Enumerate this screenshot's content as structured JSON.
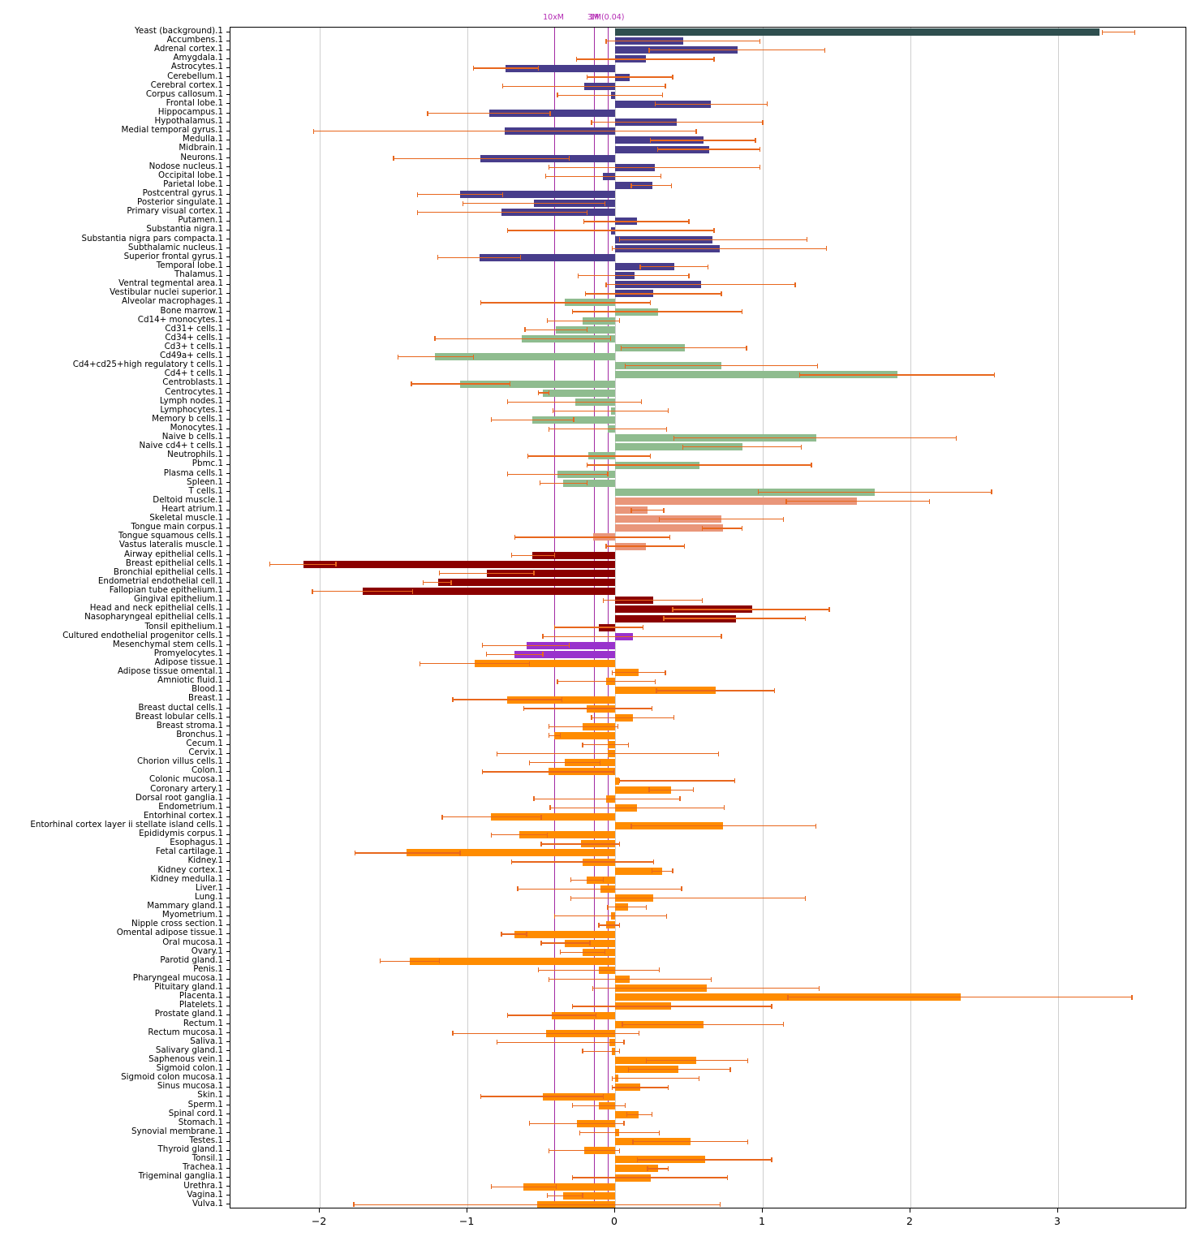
{
  "chart_data": {
    "type": "bar",
    "orientation": "horizontal",
    "title": "",
    "xlabel": "",
    "ylabel": "",
    "grid": true,
    "legend": "none",
    "xlim": [
      -2.605,
      3.874
    ],
    "x_ticks": [
      "-2",
      "-1",
      "0",
      "1",
      "2",
      "3"
    ],
    "x_tick_values": [
      -2,
      -1,
      0,
      1,
      2,
      3
    ],
    "error_bar_color": "#e8671d",
    "annotation_color": "#b32ab3",
    "annotations": [
      {
        "label": "10xM",
        "x": -0.412
      },
      {
        "label": "3M",
        "x": -0.143
      },
      {
        "label": "1M(0.04)",
        "x": -0.049
      }
    ],
    "group_colors": {
      "yeast": "#2F4F4F",
      "brain": "#483D8B",
      "immune": "#8FBC8F",
      "muscle": "#E9967A",
      "epithelial": "#8B0000",
      "stem": "#9932CC",
      "tissue": "#FF8C00"
    },
    "row_columns": [
      "label",
      "value",
      "err_lo",
      "err_hi",
      "group"
    ],
    "rows": [
      [
        "Yeast (background).1",
        3.28,
        3.3,
        3.52,
        "yeast"
      ],
      [
        "Accumbens.1",
        0.46,
        -0.06,
        0.98,
        "brain"
      ],
      [
        "Adrenal cortex.1",
        0.83,
        0.23,
        1.42,
        "brain"
      ],
      [
        "Amygdala.1",
        0.21,
        -0.26,
        0.67,
        "brain"
      ],
      [
        "Astrocytes.1",
        -0.74,
        -0.96,
        -0.52,
        "brain"
      ],
      [
        "Cerebellum.1",
        0.1,
        -0.19,
        0.39,
        "brain"
      ],
      [
        "Cerebral cortex.1",
        -0.21,
        -0.76,
        0.34,
        "brain"
      ],
      [
        "Corpus callosum.1",
        -0.03,
        -0.39,
        0.32,
        "brain"
      ],
      [
        "Frontal lobe.1",
        0.65,
        0.27,
        1.03,
        "brain"
      ],
      [
        "Hippocampus.1",
        -0.85,
        -1.27,
        -0.44,
        "brain"
      ],
      [
        "Hypothalamus.1",
        0.42,
        -0.16,
        1.0,
        "brain"
      ],
      [
        "Medial temporal gyrus.1",
        -0.75,
        -2.04,
        0.55,
        "brain"
      ],
      [
        "Medulla.1",
        0.6,
        0.24,
        0.95,
        "brain"
      ],
      [
        "Midbrain.1",
        0.64,
        0.29,
        0.98,
        "brain"
      ],
      [
        "Neurons.1",
        -0.91,
        -1.5,
        -0.31,
        "brain"
      ],
      [
        "Nodose nucleus.1",
        0.27,
        -0.45,
        0.98,
        "brain"
      ],
      [
        "Occipital lobe.1",
        -0.08,
        -0.47,
        0.31,
        "brain"
      ],
      [
        "Parietal lobe.1",
        0.25,
        0.11,
        0.38,
        "brain"
      ],
      [
        "Postcentral gyrus.1",
        -1.05,
        -1.34,
        -0.76,
        "brain"
      ],
      [
        "Posterior singulate.1",
        -0.55,
        -1.03,
        -0.07,
        "brain"
      ],
      [
        "Primary visual cortex.1",
        -0.77,
        -1.34,
        -0.19,
        "brain"
      ],
      [
        "Putamen.1",
        0.15,
        -0.21,
        0.5,
        "brain"
      ],
      [
        "Substantia nigra.1",
        -0.03,
        -0.73,
        0.67,
        "brain"
      ],
      [
        "Substantia nigra pars compacta.1",
        0.66,
        0.03,
        1.3,
        "brain"
      ],
      [
        "Subthalamic nucleus.1",
        0.71,
        -0.02,
        1.43,
        "brain"
      ],
      [
        "Superior frontal gyrus.1",
        -0.92,
        -1.2,
        -0.64,
        "brain"
      ],
      [
        "Temporal lobe.1",
        0.4,
        0.17,
        0.63,
        "brain"
      ],
      [
        "Thalamus.1",
        0.13,
        -0.25,
        0.5,
        "brain"
      ],
      [
        "Ventral tegmental area.1",
        0.58,
        -0.06,
        1.22,
        "brain"
      ],
      [
        "Vestibular nuclei superior.1",
        0.26,
        -0.2,
        0.72,
        "brain"
      ],
      [
        "Alveolar macrophages.1",
        -0.34,
        -0.91,
        0.24,
        "immune"
      ],
      [
        "Bone marrow.1",
        0.29,
        -0.29,
        0.86,
        "immune"
      ],
      [
        "Cd14+ monocytes.1",
        -0.22,
        -0.46,
        0.03,
        "immune"
      ],
      [
        "Cd31+ cells.1",
        -0.4,
        -0.61,
        -0.19,
        "immune"
      ],
      [
        "Cd34+ cells.1",
        -0.63,
        -1.22,
        -0.03,
        "immune"
      ],
      [
        "Cd3+ t cells.1",
        0.47,
        0.04,
        0.89,
        "immune"
      ],
      [
        "Cd49a+ cells.1",
        -1.22,
        -1.47,
        -0.96,
        "immune"
      ],
      [
        "Cd4+cd25+high regulatory t cells.1",
        0.72,
        0.07,
        1.37,
        "immune"
      ],
      [
        "Cd4+ t cells.1",
        1.91,
        1.25,
        2.57,
        "immune"
      ],
      [
        "Centroblasts.1",
        -1.05,
        -1.38,
        -0.71,
        "immune"
      ],
      [
        "Centrocytes.1",
        -0.49,
        -0.52,
        -0.45,
        "immune"
      ],
      [
        "Lymph nodes.1",
        -0.27,
        -0.73,
        0.18,
        "immune"
      ],
      [
        "Lymphocytes.1",
        -0.03,
        -0.42,
        0.36,
        "immune"
      ],
      [
        "Memory b cells.1",
        -0.56,
        -0.84,
        -0.28,
        "immune"
      ],
      [
        "Monocytes.1",
        -0.05,
        -0.45,
        0.35,
        "immune"
      ],
      [
        "Naive b cells.1",
        1.36,
        0.4,
        2.31,
        "immune"
      ],
      [
        "Naive cd4+ t cells.1",
        0.86,
        0.46,
        1.26,
        "immune"
      ],
      [
        "Neutrophils.1",
        -0.18,
        -0.59,
        0.24,
        "immune"
      ],
      [
        "Pbmc.1",
        0.57,
        -0.19,
        1.33,
        "immune"
      ],
      [
        "Plasma cells.1",
        -0.39,
        -0.73,
        -0.05,
        "immune"
      ],
      [
        "Spleen.1",
        -0.35,
        -0.51,
        -0.19,
        "immune"
      ],
      [
        "T cells.1",
        1.76,
        0.97,
        2.55,
        "immune"
      ],
      [
        "Deltoid muscle.1",
        1.64,
        1.16,
        2.13,
        "muscle"
      ],
      [
        "Heart atrium.1",
        0.22,
        0.11,
        0.33,
        "muscle"
      ],
      [
        "Skeletal muscle.1",
        0.72,
        0.3,
        1.14,
        "muscle"
      ],
      [
        "Tongue main corpus.1",
        0.73,
        0.59,
        0.86,
        "muscle"
      ],
      [
        "Tongue squamous cells.1",
        -0.15,
        -0.68,
        0.37,
        "muscle"
      ],
      [
        "Vastus lateralis muscle.1",
        0.21,
        -0.06,
        0.47,
        "muscle"
      ],
      [
        "Airway epithelial cells.1",
        -0.56,
        -0.7,
        -0.41,
        "epithelial"
      ],
      [
        "Breast epithelial cells.1",
        -2.11,
        -2.34,
        -1.89,
        "epithelial"
      ],
      [
        "Bronchial epithelial cells.1",
        -0.87,
        -1.19,
        -0.55,
        "epithelial"
      ],
      [
        "Endometrial endothelial cell.1",
        -1.2,
        -1.3,
        -1.11,
        "epithelial"
      ],
      [
        "Fallopian tube epithelium.1",
        -1.71,
        -2.05,
        -1.37,
        "epithelial"
      ],
      [
        "Gingival epithelium.1",
        0.26,
        -0.08,
        0.59,
        "epithelial"
      ],
      [
        "Head and neck epithelial cells.1",
        0.93,
        0.39,
        1.45,
        "epithelial"
      ],
      [
        "Nasopharyngeal epithelial cells.1",
        0.82,
        0.33,
        1.29,
        "epithelial"
      ],
      [
        "Tonsil epithelium.1",
        -0.11,
        -0.41,
        0.19,
        "epithelial"
      ],
      [
        "Cultured endothelial progenitor cells.1",
        0.12,
        -0.49,
        0.72,
        "stem"
      ],
      [
        "Mesenchymal stem cells.1",
        -0.6,
        -0.9,
        -0.31,
        "stem"
      ],
      [
        "Promyelocytes.1",
        -0.68,
        -0.87,
        -0.49,
        "stem"
      ],
      [
        "Adipose tissue.1",
        -0.95,
        -1.32,
        -0.58,
        "tissue"
      ],
      [
        "Adipose tissue omental.1",
        0.16,
        -0.02,
        0.34,
        "tissue"
      ],
      [
        "Amniotic fluid.1",
        -0.06,
        -0.39,
        0.27,
        "tissue"
      ],
      [
        "Blood.1",
        0.68,
        0.28,
        1.08,
        "tissue"
      ],
      [
        "Breast.1",
        -0.73,
        -1.1,
        -0.36,
        "tissue"
      ],
      [
        "Breast ductal cells.1",
        -0.19,
        -0.62,
        0.25,
        "tissue"
      ],
      [
        "Breast lobular cells.1",
        0.12,
        -0.16,
        0.4,
        "tissue"
      ],
      [
        "Breast stroma.1",
        -0.22,
        -0.45,
        0.02,
        "tissue"
      ],
      [
        "Bronchus.1",
        -0.41,
        -0.45,
        -0.37,
        "tissue"
      ],
      [
        "Cecum.1",
        -0.05,
        -0.22,
        0.09,
        "tissue"
      ],
      [
        "Cervix.1",
        -0.05,
        -0.8,
        0.7,
        "tissue"
      ],
      [
        "Chorion villus cells.1",
        -0.34,
        -0.58,
        -0.1,
        "tissue"
      ],
      [
        "Colon.1",
        -0.45,
        -0.9,
        -0.01,
        "tissue"
      ],
      [
        "Colonic mucosa.1",
        0.03,
        0.03,
        0.81,
        "tissue"
      ],
      [
        "Coronary artery.1",
        0.38,
        0.23,
        0.53,
        "tissue"
      ],
      [
        "Dorsal root ganglia.1",
        -0.06,
        -0.55,
        0.44,
        "tissue"
      ],
      [
        "Endometrium.1",
        0.15,
        -0.44,
        0.74,
        "tissue"
      ],
      [
        "Entorhinal cortex.1",
        -0.84,
        -1.17,
        -0.5,
        "tissue"
      ],
      [
        "Entorhinal cortex layer ii stellate island cells.1",
        0.73,
        0.11,
        1.36,
        "tissue"
      ],
      [
        "Epididymis corpus.1",
        -0.65,
        -0.84,
        -0.46,
        "tissue"
      ],
      [
        "Esophagus.1",
        -0.23,
        -0.5,
        0.03,
        "tissue"
      ],
      [
        "Fetal cartilage.1",
        -1.41,
        -1.76,
        -1.05,
        "tissue"
      ],
      [
        "Kidney.1",
        -0.22,
        -0.7,
        0.26,
        "tissue"
      ],
      [
        "Kidney cortex.1",
        0.32,
        0.25,
        0.39,
        "tissue"
      ],
      [
        "Kidney medulla.1",
        -0.19,
        -0.3,
        -0.08,
        "tissue"
      ],
      [
        "Liver.1",
        -0.1,
        -0.66,
        0.45,
        "tissue"
      ],
      [
        "Lung.1",
        0.26,
        -0.3,
        1.29,
        "tissue"
      ],
      [
        "Mammary gland.1",
        0.09,
        -0.05,
        0.21,
        "tissue"
      ],
      [
        "Myometrium.1",
        -0.03,
        -0.41,
        0.35,
        "tissue"
      ],
      [
        "Nipple cross section.1",
        -0.06,
        -0.11,
        0.03,
        "tissue"
      ],
      [
        "Omental adipose tissue.1",
        -0.68,
        -0.77,
        -0.6,
        "tissue"
      ],
      [
        "Oral mucosa.1",
        -0.34,
        -0.5,
        -0.17,
        "tissue"
      ],
      [
        "Ovary.1",
        -0.22,
        -0.37,
        -0.07,
        "tissue"
      ],
      [
        "Parotid gland.1",
        -1.39,
        -1.59,
        -1.19,
        "tissue"
      ],
      [
        "Penis.1",
        -0.11,
        -0.52,
        0.3,
        "tissue"
      ],
      [
        "Pharyngeal mucosa.1",
        0.1,
        -0.45,
        0.65,
        "tissue"
      ],
      [
        "Pituitary gland.1",
        0.62,
        -0.15,
        1.38,
        "tissue"
      ],
      [
        "Placenta.1",
        2.34,
        1.17,
        3.5,
        "tissue"
      ],
      [
        "Platelets.1",
        0.38,
        -0.29,
        1.06,
        "tissue"
      ],
      [
        "Prostate gland.1",
        -0.43,
        -0.73,
        -0.13,
        "tissue"
      ],
      [
        "Rectum.1",
        0.6,
        0.05,
        1.14,
        "tissue"
      ],
      [
        "Rectum mucosa.1",
        -0.47,
        -1.1,
        0.16,
        "tissue"
      ],
      [
        "Saliva.1",
        -0.04,
        -0.8,
        0.06,
        "tissue"
      ],
      [
        "Salivary gland.1",
        -0.02,
        -0.22,
        0.03,
        "tissue"
      ],
      [
        "Saphenous vein.1",
        0.55,
        0.21,
        0.9,
        "tissue"
      ],
      [
        "Sigmoid colon.1",
        0.43,
        0.09,
        0.78,
        "tissue"
      ],
      [
        "Sigmoid colon mucosa.1",
        0.02,
        -0.02,
        0.57,
        "tissue"
      ],
      [
        "Sinus mucosa.1",
        0.17,
        -0.02,
        0.36,
        "tissue"
      ],
      [
        "Skin.1",
        -0.49,
        -0.91,
        -0.08,
        "tissue"
      ],
      [
        "Sperm.1",
        -0.11,
        -0.29,
        0.07,
        "tissue"
      ],
      [
        "Spinal cord.1",
        0.16,
        0.08,
        0.25,
        "tissue"
      ],
      [
        "Stomach.1",
        -0.26,
        -0.58,
        0.06,
        "tissue"
      ],
      [
        "Synovial membrane.1",
        0.03,
        -0.24,
        0.3,
        "tissue"
      ],
      [
        "Testes.1",
        0.51,
        0.12,
        0.9,
        "tissue"
      ],
      [
        "Thyroid gland.1",
        -0.21,
        -0.45,
        0.03,
        "tissue"
      ],
      [
        "Tonsil.1",
        0.61,
        0.15,
        1.06,
        "tissue"
      ],
      [
        "Trachea.1",
        0.29,
        0.22,
        0.36,
        "tissue"
      ],
      [
        "Trigeminal ganglia.1",
        0.24,
        -0.29,
        0.76,
        "tissue"
      ],
      [
        "Urethra.1",
        -0.62,
        -0.84,
        -0.4,
        "tissue"
      ],
      [
        "Vagina.1",
        -0.35,
        -0.46,
        -0.22,
        "tissue"
      ],
      [
        "Vulva.1",
        -0.53,
        -1.77,
        0.71,
        "tissue"
      ]
    ]
  }
}
